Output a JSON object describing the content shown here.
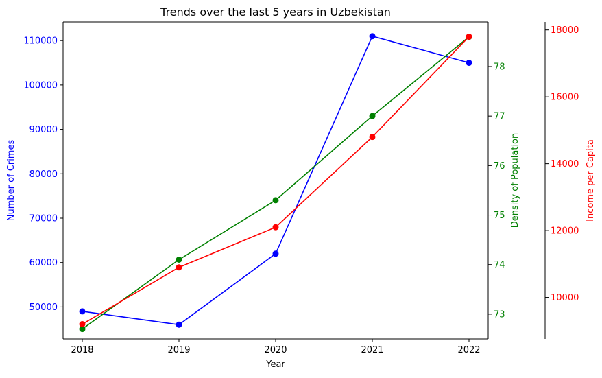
{
  "chart_data": {
    "type": "line",
    "title": "Trends over the last 5 years in Uzbekistan",
    "xlabel": "Year",
    "x": [
      "2018",
      "2019",
      "2020",
      "2021",
      "2022"
    ],
    "series": [
      {
        "key": "crimes",
        "axis": "left",
        "color": "#0000ff",
        "values": [
          49000,
          46000,
          62000,
          111000,
          105000
        ]
      },
      {
        "key": "density",
        "axis": "right1",
        "color": "#008000",
        "values": [
          72.7,
          74.1,
          75.3,
          77.0,
          78.6
        ]
      },
      {
        "key": "income",
        "axis": "right2",
        "color": "#ff0000",
        "values": [
          9200,
          10900,
          12100,
          14800,
          17800
        ]
      }
    ],
    "axes": {
      "left": {
        "label": "Number of Crimes",
        "color": "#0000ff",
        "ylim": [
          42800,
          114200
        ],
        "ticks": [
          50000,
          60000,
          70000,
          80000,
          90000,
          100000,
          110000
        ],
        "tick_labels": [
          "50000",
          "60000",
          "70000",
          "80000",
          "90000",
          "100000",
          "110000"
        ]
      },
      "right1": {
        "label": "Density of Population",
        "color": "#008000",
        "ylim": [
          72.5,
          78.9
        ],
        "ticks": [
          73,
          74,
          75,
          76,
          77,
          78
        ],
        "tick_labels": [
          "73",
          "74",
          "75",
          "76",
          "77",
          "78"
        ]
      },
      "right2": {
        "label": "Income per Capita",
        "color": "#ff0000",
        "ylim": [
          8760,
          18240
        ],
        "ticks": [
          10000,
          12000,
          14000,
          16000,
          18000
        ],
        "tick_labels": [
          "10000",
          "12000",
          "14000",
          "16000",
          "18000"
        ]
      }
    },
    "grid": false
  }
}
